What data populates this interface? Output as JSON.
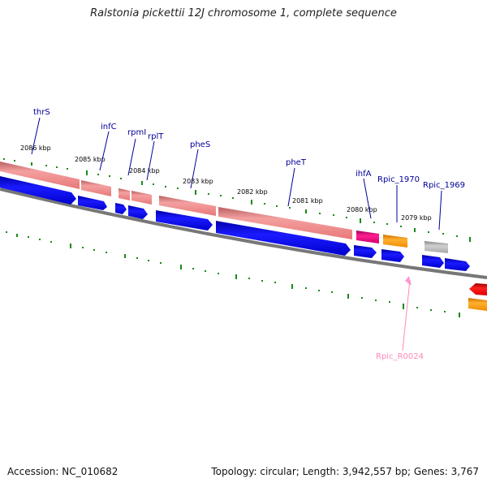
{
  "title": "Ralstonia pickettii 12J chromosome 1, complete sequence",
  "footer": {
    "accession": "Accession: NC_010682",
    "summary": "Topology: circular; Length: 3,942,557 bp; Genes: 3,767"
  },
  "kbp_labels": [
    "2086 kbp",
    "2085 kbp",
    "2084 kbp",
    "2083 kbp",
    "2082 kbp",
    "2081 kbp",
    "2080 kbp",
    "2079 kbp"
  ],
  "gene_labels": [
    "thrS",
    "infC",
    "rpmI",
    "rplT",
    "pheS",
    "pheT",
    "ihfA",
    "Rpic_1970",
    "Rpic_1969",
    "Rpic_R0024"
  ],
  "colors": {
    "cds": "#0000ee",
    "gene": "#f08080",
    "ihfA": "#e0007a",
    "orange": "#ff9900",
    "gray": "#b0b0b0",
    "red": "#ee0000",
    "trna": "#ff99cc",
    "tick": "#008800",
    "label": "#000099",
    "label_pink": "#ff88bb",
    "backbone": "#808080"
  }
}
